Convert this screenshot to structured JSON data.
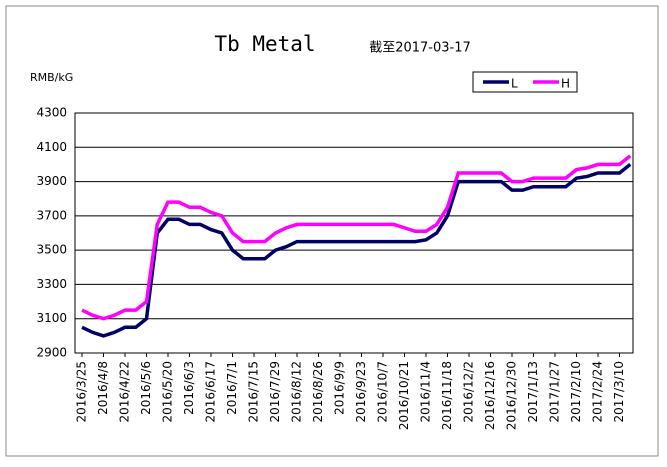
{
  "chart_data": {
    "type": "line",
    "title": "Tb Metal",
    "subtitle": "截至2017-03-17",
    "y_label": "RMB/kG",
    "categories": [
      "2016/3/25",
      null,
      "2016/4/8",
      null,
      "2016/4/22",
      null,
      "2016/5/6",
      null,
      "2016/5/20",
      null,
      "2016/6/3",
      null,
      "2016/6/17",
      null,
      "2016/7/1",
      null,
      "2016/7/15",
      null,
      "2016/7/29",
      null,
      "2016/8/12",
      null,
      "2016/8/26",
      null,
      "2016/9/9",
      null,
      "2016/9/23",
      null,
      "2016/10/7",
      null,
      "2016/10/21",
      null,
      "2016/11/4",
      null,
      "2016/11/18",
      null,
      "2016/12/2",
      null,
      "2016/12/16",
      null,
      "2016/12/30",
      null,
      "2017/1/13",
      null,
      "2017/1/27",
      null,
      "2017/2/10",
      null,
      "2017/2/24",
      null,
      "2017/3/10",
      null
    ],
    "series": [
      {
        "name": "L",
        "color": "#000066",
        "values": [
          3050,
          3020,
          3000,
          3020,
          3050,
          3050,
          3100,
          3600,
          3680,
          3680,
          3650,
          3650,
          3620,
          3600,
          3500,
          3450,
          3450,
          3450,
          3500,
          3520,
          3550,
          3550,
          3550,
          3550,
          3550,
          3550,
          3550,
          3550,
          3550,
          3550,
          3550,
          3550,
          3560,
          3600,
          3700,
          3900,
          3900,
          3900,
          3900,
          3900,
          3850,
          3850,
          3870,
          3870,
          3870,
          3870,
          3920,
          3930,
          3950,
          3950,
          3950,
          4000
        ]
      },
      {
        "name": "H",
        "color": "#ff00ff",
        "values": [
          3150,
          3120,
          3100,
          3120,
          3150,
          3150,
          3200,
          3650,
          3780,
          3780,
          3750,
          3750,
          3720,
          3700,
          3600,
          3550,
          3550,
          3550,
          3600,
          3630,
          3650,
          3650,
          3650,
          3650,
          3650,
          3650,
          3650,
          3650,
          3650,
          3650,
          3630,
          3610,
          3610,
          3650,
          3750,
          3950,
          3950,
          3950,
          3950,
          3950,
          3900,
          3900,
          3920,
          3920,
          3920,
          3920,
          3970,
          3980,
          4000,
          4000,
          4000,
          4050
        ]
      }
    ],
    "ylim": [
      2900,
      4300
    ],
    "yticks": [
      2900,
      3100,
      3300,
      3500,
      3700,
      3900,
      4100,
      4300
    ],
    "grid": true,
    "legend": "top-right"
  }
}
